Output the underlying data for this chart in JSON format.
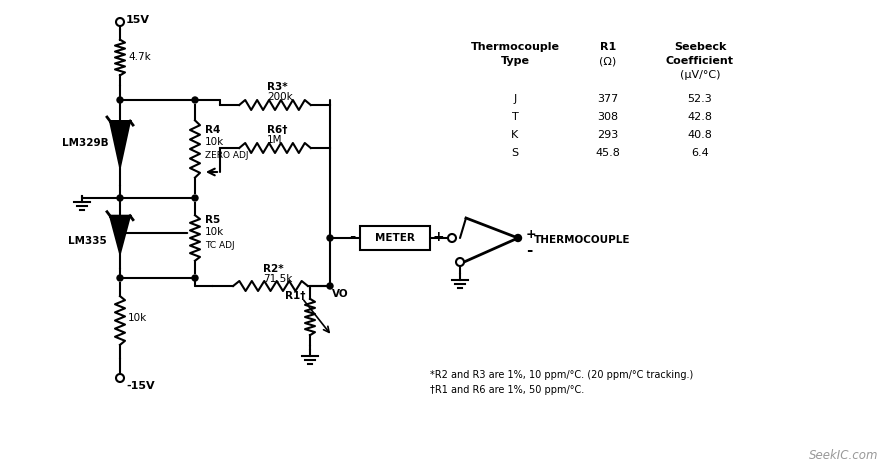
{
  "bg_color": "#ffffff",
  "line_color": "#000000",
  "fig_width": 8.92,
  "fig_height": 4.76,
  "table": {
    "rows": [
      [
        "J",
        "377",
        "52.3"
      ],
      [
        "T",
        "308",
        "42.8"
      ],
      [
        "K",
        "293",
        "40.8"
      ],
      [
        "S",
        "45.8",
        "6.4"
      ]
    ]
  },
  "footnotes": [
    "*R2 and R3 are 1%, 10 ppm/°C. (20 ppm/°C tracking.)",
    "†R1 and R6 are 1%, 50 ppm/°C."
  ],
  "seekic": "SeekIC.com"
}
